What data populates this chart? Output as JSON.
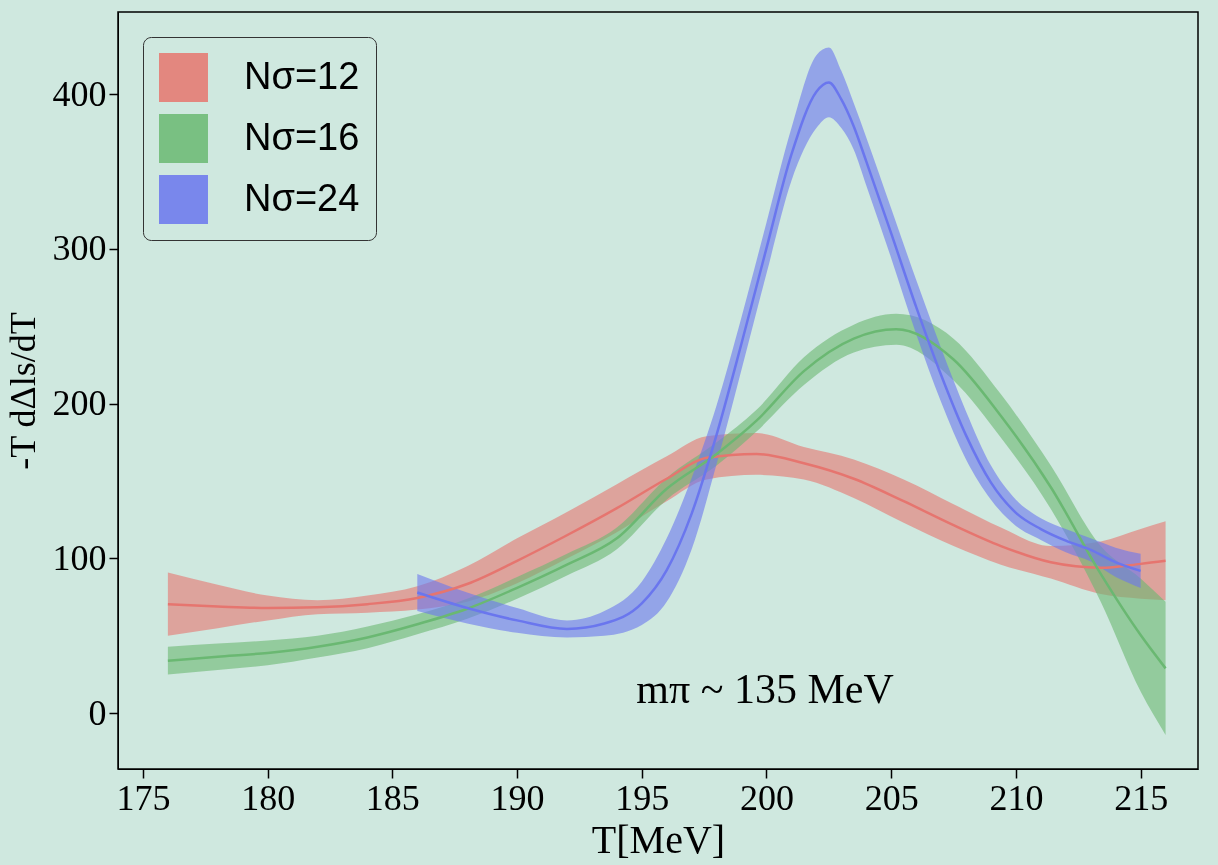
{
  "chart_data": {
    "type": "line",
    "xlabel": "T[MeV]",
    "ylabel": "-T dΔls/dT",
    "annotations": [
      "mπ ~ 135 MeV"
    ],
    "xlim": [
      174,
      217.3
    ],
    "ylim": [
      -36,
      453
    ],
    "xticks": [
      175,
      180,
      185,
      190,
      195,
      200,
      205,
      210,
      215
    ],
    "yticks": [
      0,
      100,
      200,
      300,
      400
    ],
    "grid": false,
    "legend": "top left",
    "series": [
      {
        "name": "Nσ=12",
        "color": "#e6756f",
        "x": [
          176,
          178,
          180,
          182,
          184,
          186,
          188,
          190,
          192,
          194,
          196,
          197.6,
          199.6,
          201.5,
          203.5,
          205.5,
          207.5,
          209.4,
          211.4,
          213.4,
          215,
          216
        ],
        "values": [
          70.5,
          69,
          68,
          68.5,
          70.5,
          74.5,
          83.5,
          98.5,
          115,
          132.5,
          151.5,
          165,
          167.5,
          161.5,
          151.5,
          137,
          121.5,
          108,
          97.5,
          94,
          96.5,
          98.5
        ],
        "upper": [
          91,
          83,
          76,
          73,
          76,
          82,
          95,
          113,
          130,
          148,
          166,
          179,
          181,
          172,
          164,
          151,
          135,
          120,
          108,
          111,
          119,
          124
        ],
        "lower": [
          50,
          55,
          60,
          64,
          65,
          67,
          72,
          84,
          100,
          117,
          137,
          151,
          154,
          151,
          139,
          123,
          108,
          96,
          87,
          77,
          74,
          73
        ]
      },
      {
        "name": "Nσ=16",
        "color": "#6ab872",
        "x": [
          176,
          178,
          180,
          182,
          184,
          186,
          188,
          190,
          192,
          194,
          196,
          198,
          199.6,
          201.5,
          203.5,
          205.2,
          207.5,
          209.4,
          211.4,
          213.4,
          215,
          216
        ],
        "values": [
          34,
          36.5,
          39,
          43,
          49,
          57.5,
          67.5,
          81,
          96,
          113,
          145,
          167.5,
          189,
          221,
          242,
          248,
          228.5,
          192,
          146,
          90,
          50.5,
          29
        ],
        "upper": [
          43,
          45,
          47,
          50,
          56,
          64,
          74,
          88,
          103,
          120,
          152,
          175,
          196,
          230,
          251,
          258,
          242,
          206,
          160,
          108,
          87,
          72
        ],
        "lower": [
          25,
          28,
          31,
          36,
          42,
          51,
          61,
          74,
          89,
          106,
          138,
          160,
          182,
          212,
          233,
          238,
          215,
          178,
          132,
          72,
          14,
          -14
        ]
      },
      {
        "name": "Nσ=24",
        "color": "#6a76ee",
        "x": [
          186,
          188,
          190,
          192,
          193.5,
          195,
          196,
          197,
          198,
          199,
          200,
          201,
          202,
          202.5,
          203,
          203.5,
          204,
          205,
          206,
          207,
          208,
          209,
          210,
          211,
          212,
          213,
          214,
          215
        ],
        "values": [
          78,
          68,
          60,
          54.5,
          58,
          71,
          92.5,
          129,
          180,
          239,
          300.5,
          361,
          401.5,
          407.5,
          396.5,
          379,
          356.5,
          310,
          262.5,
          218.5,
          179.5,
          149,
          129.5,
          119,
          111.5,
          105.5,
          97.5,
          92
        ],
        "upper": [
          90,
          78,
          68,
          60,
          66,
          85,
          113,
          152,
          199,
          256,
          317,
          378,
          425,
          430,
          415,
          394,
          372,
          326,
          280,
          236,
          195,
          160,
          138,
          126,
          119,
          113,
          107,
          103
        ],
        "lower": [
          66,
          58,
          52,
          49,
          50,
          57,
          72,
          106,
          161,
          222,
          284,
          344,
          378,
          385,
          378,
          364,
          341,
          294,
          245,
          201,
          164,
          138,
          121,
          112,
          104,
          98,
          88,
          81
        ]
      }
    ]
  }
}
